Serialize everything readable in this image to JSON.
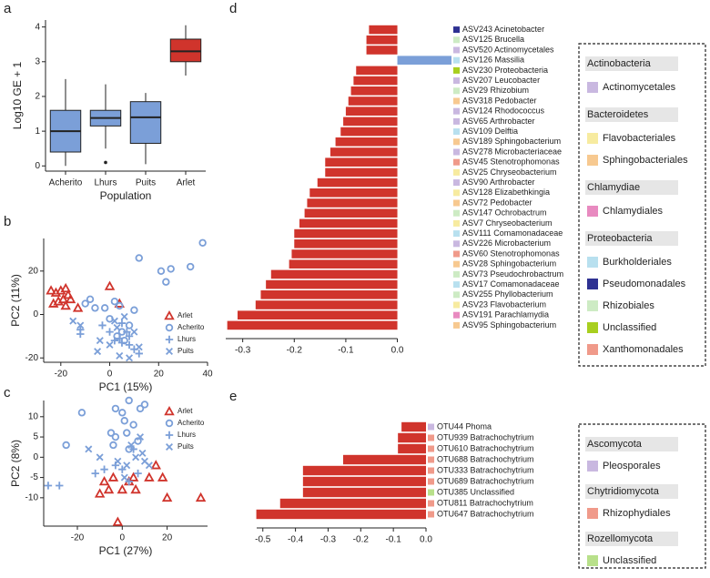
{
  "chart_data": [
    {
      "type": "box",
      "panel": "a",
      "ylabel": "Log10 GE + 1",
      "xlabel": "Population",
      "ylim": [
        -0.15,
        4.2
      ],
      "yticks": [
        0,
        1,
        2,
        3,
        4
      ],
      "series": [
        {
          "name": "Acherito",
          "color": "#7b9fd8",
          "whisker_low": 0,
          "q1": 0.4,
          "median": 1.0,
          "q3": 1.6,
          "whisker_high": 2.5,
          "outliers": []
        },
        {
          "name": "Lhurs",
          "color": "#7b9fd8",
          "whisker_low": 0.5,
          "q1": 1.15,
          "median": 1.38,
          "q3": 1.6,
          "whisker_high": 2.35,
          "outliers": [
            0.1
          ]
        },
        {
          "name": "Puits",
          "color": "#7b9fd8",
          "whisker_low": 0.05,
          "q1": 0.65,
          "median": 1.4,
          "q3": 1.85,
          "whisker_high": 2.1,
          "outliers": []
        },
        {
          "name": "Arlet",
          "color": "#d0342c",
          "whisker_low": 2.6,
          "q1": 3.0,
          "median": 3.3,
          "q3": 3.65,
          "whisker_high": 4.05,
          "outliers": []
        }
      ]
    },
    {
      "type": "scatter",
      "panel": "b",
      "xlabel": "PC1 (15%)",
      "ylabel": "PC2 (11%)",
      "xlim": [
        -27,
        40
      ],
      "xticks": [
        -20,
        0,
        20,
        40
      ],
      "ylim": [
        -22,
        35
      ],
      "yticks": [
        -20,
        0,
        20
      ],
      "legend": "lower right",
      "series": [
        {
          "name": "Arlet",
          "color": "#d0342c",
          "marker": "triangle",
          "values": [
            [
              -24,
              11
            ],
            [
              -22,
              10
            ],
            [
              -20,
              11
            ],
            [
              -18,
              12
            ],
            [
              -17,
              9
            ],
            [
              -19,
              7
            ],
            [
              -21,
              6
            ],
            [
              -23,
              5
            ],
            [
              -16,
              7
            ],
            [
              -18,
              4
            ],
            [
              -13,
              3
            ],
            [
              0,
              13
            ],
            [
              4,
              5
            ]
          ]
        },
        {
          "name": "Acherito",
          "color": "#7b9fd8",
          "marker": "circle",
          "values": [
            [
              38,
              33
            ],
            [
              33,
              22
            ],
            [
              25,
              21
            ],
            [
              21,
              20
            ],
            [
              23,
              15
            ],
            [
              12,
              26
            ],
            [
              -8,
              7
            ],
            [
              -6,
              3
            ],
            [
              -2,
              3
            ],
            [
              2,
              6
            ],
            [
              4,
              4
            ],
            [
              -10,
              5
            ],
            [
              0,
              -2
            ],
            [
              6,
              -12
            ],
            [
              8,
              -5
            ],
            [
              3,
              -10
            ],
            [
              5,
              -8
            ],
            [
              10,
              2
            ]
          ]
        },
        {
          "name": "Lhurs",
          "color": "#7b9fd8",
          "marker": "plus",
          "values": [
            [
              -12,
              -7
            ],
            [
              -12,
              -9
            ],
            [
              -3,
              -5
            ],
            [
              0,
              -8
            ],
            [
              2,
              -12
            ],
            [
              4,
              -11
            ],
            [
              5,
              -13
            ],
            [
              7,
              -8
            ],
            [
              8,
              -14
            ],
            [
              10,
              -16
            ],
            [
              12,
              -18
            ],
            [
              5,
              -4
            ],
            [
              8,
              -10
            ]
          ]
        },
        {
          "name": "Puits",
          "color": "#7b9fd8",
          "marker": "x",
          "values": [
            [
              -15,
              -3
            ],
            [
              -12,
              -5
            ],
            [
              -5,
              -17
            ],
            [
              -4,
              -12
            ],
            [
              0,
              -14
            ],
            [
              2,
              -3
            ],
            [
              3,
              -6
            ],
            [
              6,
              -1
            ],
            [
              10,
              -8
            ],
            [
              12,
              -15
            ],
            [
              4,
              -19
            ],
            [
              8,
              -20
            ]
          ]
        }
      ]
    },
    {
      "type": "scatter",
      "panel": "c",
      "xlabel": "PC1 (27%)",
      "ylabel": "PC2 (8%)",
      "xlim": [
        -35,
        38
      ],
      "xticks": [
        -20,
        0,
        20
      ],
      "ylim": [
        -17,
        14
      ],
      "yticks": [
        -10,
        -5,
        0,
        5,
        10
      ],
      "legend": "upper right",
      "series": [
        {
          "name": "Arlet",
          "color": "#d0342c",
          "marker": "triangle",
          "values": [
            [
              -10,
              -9
            ],
            [
              -8,
              -6
            ],
            [
              -6,
              -8
            ],
            [
              -4,
              -5
            ],
            [
              0,
              -8
            ],
            [
              3,
              -6
            ],
            [
              5,
              -5
            ],
            [
              12,
              -5
            ],
            [
              15,
              -2
            ],
            [
              18,
              -5
            ],
            [
              20,
              -10
            ],
            [
              35,
              -10
            ],
            [
              -2,
              -16
            ],
            [
              6,
              -8
            ]
          ]
        },
        {
          "name": "Acherito",
          "color": "#7b9fd8",
          "marker": "circle",
          "values": [
            [
              -18,
              11
            ],
            [
              -25,
              3
            ],
            [
              -3,
              12
            ],
            [
              0,
              11
            ],
            [
              1,
              9
            ],
            [
              3,
              14
            ],
            [
              8,
              12
            ],
            [
              10,
              13
            ],
            [
              5,
              8
            ],
            [
              2,
              6
            ],
            [
              -5,
              6
            ],
            [
              -3,
              5
            ],
            [
              7,
              4
            ],
            [
              -4,
              3
            ],
            [
              3,
              2
            ]
          ]
        },
        {
          "name": "Lhurs",
          "color": "#7b9fd8",
          "marker": "plus",
          "values": [
            [
              -33,
              -7
            ],
            [
              -28,
              -7
            ],
            [
              -12,
              -4
            ],
            [
              -8,
              -3
            ],
            [
              -3,
              -2
            ],
            [
              0,
              -3
            ],
            [
              5,
              2
            ],
            [
              7,
              -4
            ],
            [
              3,
              -6
            ]
          ]
        },
        {
          "name": "Puits",
          "color": "#7b9fd8",
          "marker": "x",
          "values": [
            [
              -15,
              2
            ],
            [
              -10,
              0
            ],
            [
              -2,
              -1
            ],
            [
              2,
              -2
            ],
            [
              4,
              3
            ],
            [
              8,
              5
            ],
            [
              9,
              1
            ],
            [
              6,
              0
            ],
            [
              10,
              -1
            ],
            [
              12,
              -2
            ],
            [
              1,
              -5
            ]
          ]
        }
      ]
    },
    {
      "type": "hbar",
      "panel": "d",
      "xlim": [
        -0.34,
        0.105
      ],
      "xticks": [
        -0.3,
        -0.2,
        -0.1,
        {
          "value": 0,
          "label": "0.0"
        }
      ],
      "categories": [
        "ASV243 Acinetobacter",
        "ASV125 Brucella",
        "ASV520 Actinomycetales",
        "ASV126 Massilia",
        "ASV230 Proteobacteria",
        "ASV207 Leucobacter",
        "ASV29 Rhizobium",
        "ASV318 Pedobacter",
        "ASV124 Rhodococcus",
        "ASV65 Arthrobacter",
        "ASV109 Delftia",
        "ASV189 Sphingobacterium",
        "ASV278 Microbacteriaceae",
        "ASV45 Stenotrophomonas",
        "ASV25 Chryseobacterium",
        "ASV90 Arthrobacter",
        "ASV128 Elizabethkingia",
        "ASV72 Pedobacter",
        "ASV147 Ochrobactrum",
        "ASV7 Chryseobacterium",
        "ASV111 Comamonadaceae",
        "ASV226 Microbacterium",
        "ASV60 Stenotrophomonas",
        "ASV28 Sphingobacterium",
        "ASV73 Pseudochrobactrum",
        "ASV17 Comamonadaceae",
        "ASV255 Phyllobacterium",
        "ASV23 Flavobacterium",
        "ASV191 Parachlamydia",
        "ASV95 Sphingobacterium"
      ],
      "values": [
        -0.055,
        -0.06,
        -0.06,
        0.105,
        -0.08,
        -0.085,
        -0.09,
        -0.095,
        -0.1,
        -0.105,
        -0.11,
        -0.12,
        -0.13,
        -0.14,
        -0.14,
        -0.155,
        -0.17,
        -0.175,
        -0.18,
        -0.19,
        -0.2,
        -0.2,
        -0.205,
        -0.21,
        -0.245,
        -0.255,
        -0.265,
        -0.275,
        -0.31,
        -0.33
      ],
      "bar_colors": [
        "#d0342c",
        "#d0342c",
        "#d0342c",
        "#7b9fd8",
        "#d0342c",
        "#d0342c",
        "#d0342c",
        "#d0342c",
        "#d0342c",
        "#d0342c",
        "#d0342c",
        "#d0342c",
        "#d0342c",
        "#d0342c",
        "#d0342c",
        "#d0342c",
        "#d0342c",
        "#d0342c",
        "#d0342c",
        "#d0342c",
        "#d0342c",
        "#d0342c",
        "#d0342c",
        "#d0342c",
        "#d0342c",
        "#d0342c",
        "#d0342c",
        "#d0342c",
        "#d0342c",
        "#d0342c"
      ],
      "label_colors": [
        "#2e3192",
        "#cdebc4",
        "#c9b8e0",
        "#b8e0ef",
        "#a8cf1f",
        "#c9b8e0",
        "#cdebc4",
        "#f7c990",
        "#c9b8e0",
        "#c9b8e0",
        "#b8e0ef",
        "#f7c990",
        "#c9b8e0",
        "#f09a8a",
        "#f7eba0",
        "#c9b8e0",
        "#f7eba0",
        "#f7c990",
        "#cdebc4",
        "#f7eba0",
        "#b8e0ef",
        "#c9b8e0",
        "#f09a8a",
        "#f7c990",
        "#cdebc4",
        "#b8e0ef",
        "#cdebc4",
        "#f7eba0",
        "#e88ac0",
        "#f7c990"
      ],
      "legend_groups": [
        {
          "name": "Actinobacteria",
          "items": [
            {
              "name": "Actinomycetales",
              "color": "#c9b8e0"
            }
          ]
        },
        {
          "name": "Bacteroidetes",
          "items": [
            {
              "name": "Flavobacteriales",
              "color": "#f7eba0"
            },
            {
              "name": "Sphingobacteriales",
              "color": "#f7c990"
            }
          ]
        },
        {
          "name": "Chlamydiae",
          "items": [
            {
              "name": "Chlamydiales",
              "color": "#e88ac0"
            }
          ]
        },
        {
          "name": "Proteobacteria",
          "items": [
            {
              "name": "Burkholderiales",
              "color": "#b8e0ef"
            },
            {
              "name": "Pseudomonadales",
              "color": "#2e3192"
            },
            {
              "name": "Rhizobiales",
              "color": "#cdebc4"
            },
            {
              "name": "Unclassified",
              "color": "#a8cf1f"
            },
            {
              "name": "Xanthomonadales",
              "color": "#f09a8a"
            }
          ]
        }
      ]
    },
    {
      "type": "hbar",
      "panel": "e",
      "xlim": [
        -0.53,
        0
      ],
      "xticks": [
        -0.5,
        -0.4,
        -0.3,
        -0.2,
        -0.1,
        {
          "value": 0,
          "label": "0.0"
        }
      ],
      "categories": [
        "OTU44 Phoma",
        "OTU939 Batrachochytrium",
        "OTU610 Batrachochytrium",
        "OTU688 Batrachochytrium",
        "OTU333 Batrachochytrium",
        "OTU689 Batrachochytrium",
        "OTU385 Unclassified",
        "OTU811 Batrachochytrium",
        "OTU647 Batrachochytrium"
      ],
      "values": [
        -0.075,
        -0.086,
        -0.086,
        -0.254,
        -0.377,
        -0.377,
        -0.377,
        -0.447,
        -0.52
      ],
      "bar_colors": [
        "#d0342c",
        "#d0342c",
        "#d0342c",
        "#d0342c",
        "#d0342c",
        "#d0342c",
        "#d0342c",
        "#d0342c",
        "#d0342c"
      ],
      "label_colors": [
        "#c9b8e0",
        "#f09a8a",
        "#f09a8a",
        "#f09a8a",
        "#f09a8a",
        "#f09a8a",
        "#b8e08a",
        "#f09a8a",
        "#f09a8a"
      ],
      "legend_groups": [
        {
          "name": "Ascomycota",
          "items": [
            {
              "name": "Pleosporales",
              "color": "#c9b8e0"
            }
          ]
        },
        {
          "name": "Chytridiomycota",
          "items": [
            {
              "name": "Rhizophydiales",
              "color": "#f09a8a"
            }
          ]
        },
        {
          "name": "Rozellomycota",
          "items": [
            {
              "name": "Unclassified",
              "color": "#b8e08a"
            }
          ]
        }
      ]
    }
  ]
}
